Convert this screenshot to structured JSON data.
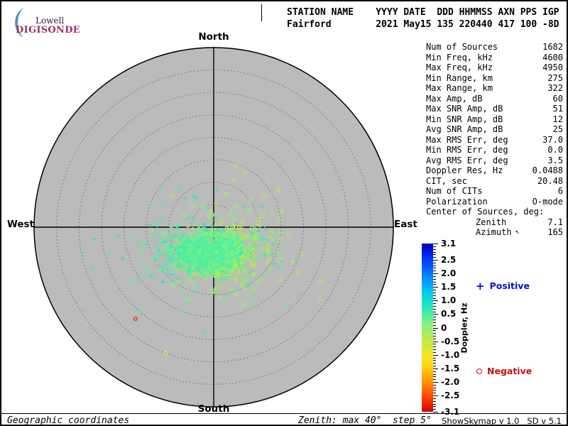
{
  "header": {
    "logo": {
      "line1": "Lowell",
      "line2": "DIGISONDE",
      "crescent_color": "#4a8fc0",
      "brand_color": "#9c3068",
      "text_color": "#22223a"
    },
    "columns_line": "STATION NAME    YYYY DATE  DDD HHMMSS AXN PPS IGP",
    "values_line": "Fairford        2021 May15 135 220440 417 100 -8D"
  },
  "compass": {
    "north": "North",
    "south": "South",
    "east": "East",
    "west": "West"
  },
  "stats": {
    "rows": [
      {
        "label": "Num of Sources",
        "value": "1682"
      },
      {
        "label": "Min Freq, kHz",
        "value": "4600"
      },
      {
        "label": "Max Freq, kHz",
        "value": "4950"
      },
      {
        "label": "Min Range, km",
        "value": "275"
      },
      {
        "label": "Max Range, km",
        "value": "322"
      },
      {
        "label": "Max Amp, dB",
        "value": "60"
      },
      {
        "label": "Max SNR Amp, dB",
        "value": "51"
      },
      {
        "label": "Min SNR Amp, dB",
        "value": "12"
      },
      {
        "label": "Avg SNR Amp, dB",
        "value": "25"
      },
      {
        "label": "Max RMS Err, deg",
        "value": "37.0"
      },
      {
        "label": "Min RMS Err, deg",
        "value": "0.0"
      },
      {
        "label": "Avg RMS Err, deg",
        "value": "3.5"
      },
      {
        "label": "Doppler Res, Hz",
        "value": "0.0488"
      },
      {
        "label": "CIT, sec",
        "value": "20.48"
      },
      {
        "label": "Num of CITs",
        "value": "6"
      },
      {
        "label": "Polarization",
        "value": "O-mode"
      },
      {
        "label": "Center of Sources, deg:",
        "value": ""
      },
      {
        "label": "Zenith",
        "value": "7.1",
        "indent": true
      },
      {
        "label": "Azimuth",
        "value": "165",
        "indent": true,
        "icon": "↖"
      }
    ]
  },
  "legend": {
    "positive_symbol": "+",
    "positive_label": "Positive",
    "positive_color": "#0011cc",
    "negative_label": "Negative",
    "negative_color": "#cc1111"
  },
  "colorbar": {
    "label": "Doppler, Hz",
    "max": 3.1,
    "min": -3.1,
    "ticks": [
      {
        "v": 3.1,
        "label": "3.1"
      },
      {
        "v": 2.5,
        "label": "2.5"
      },
      {
        "v": 2.0,
        "label": "2.0"
      },
      {
        "v": 1.5,
        "label": "1.5"
      },
      {
        "v": 1.0,
        "label": "1.0"
      },
      {
        "v": 0.5,
        "label": "0.5"
      },
      {
        "v": 0.0,
        "label": "0"
      },
      {
        "v": -0.5,
        "label": "-0.5"
      },
      {
        "v": -1.0,
        "label": "-1.0"
      },
      {
        "v": -1.5,
        "label": "-1.5"
      },
      {
        "v": -2.0,
        "label": "-2.0"
      },
      {
        "v": -2.5,
        "label": "-2.5"
      },
      {
        "v": -3.1,
        "label": "-3.1"
      }
    ],
    "stops": [
      {
        "v": 3.1,
        "c": "#0000bb"
      },
      {
        "v": 2.7,
        "c": "#0022ee"
      },
      {
        "v": 2.3,
        "c": "#0055ff"
      },
      {
        "v": 1.8,
        "c": "#0090ff"
      },
      {
        "v": 1.4,
        "c": "#00c0f0"
      },
      {
        "v": 1.0,
        "c": "#10dcd8"
      },
      {
        "v": 0.7,
        "c": "#30e8b8"
      },
      {
        "v": 0.4,
        "c": "#58f098"
      },
      {
        "v": 0.1,
        "c": "#84f480"
      },
      {
        "v": -0.2,
        "c": "#a8ec60"
      },
      {
        "v": -0.6,
        "c": "#cce840"
      },
      {
        "v": -1.0,
        "c": "#eee822"
      },
      {
        "v": -1.4,
        "c": "#ffd810"
      },
      {
        "v": -1.8,
        "c": "#ffaa00"
      },
      {
        "v": -2.2,
        "c": "#ff7700"
      },
      {
        "v": -2.6,
        "c": "#ff3c00"
      },
      {
        "v": -3.1,
        "c": "#cc0800"
      }
    ]
  },
  "footer": {
    "coords": "Geographic coordinates",
    "zenith_info": "Zenith: max 40°  step 5°",
    "version": "ShowSkymap v 1.0   SD v 5.1"
  },
  "chart_data": {
    "type": "scatter",
    "projection": "polar zenith-azimuth skymap",
    "zenith_max_deg": 40,
    "zenith_step_deg": 5,
    "num_sources": 1682,
    "center_of_sources": {
      "zenith_deg": 7.1,
      "azimuth_deg": 165
    },
    "plot_bg": "#bbbbbb",
    "ring_color": "#6e6e6e",
    "axis_color": "#000000",
    "positive_marker": "plus",
    "negative_marker": "circle",
    "seed": 20210515,
    "clusters": [
      {
        "name": "positive-dense",
        "marker": "plus",
        "n": 920,
        "center_east_deg": -1.6,
        "center_south_deg": 5.7,
        "sigma_east_deg": 4.2,
        "sigma_south_deg": 2.1,
        "doppler_mean_hz": 0.38,
        "doppler_sigma_hz": 0.13
      },
      {
        "name": "positive-sparse",
        "marker": "plus",
        "n": 200,
        "center_east_deg": -2.0,
        "center_south_deg": 5.0,
        "sigma_east_deg": 8.5,
        "sigma_south_deg": 4.8,
        "doppler_mean_hz": 0.5,
        "doppler_sigma_hz": 0.18
      },
      {
        "name": "negative-dense",
        "marker": "circle",
        "n": 420,
        "center_east_deg": 2.2,
        "center_south_deg": 5.8,
        "sigma_east_deg": 3.2,
        "sigma_south_deg": 2.6,
        "doppler_mean_hz": -0.27,
        "doppler_sigma_hz": 0.13
      },
      {
        "name": "negative-sparse",
        "marker": "circle",
        "n": 129,
        "center_east_deg": 5.5,
        "center_south_deg": 4.5,
        "sigma_east_deg": 7.5,
        "sigma_south_deg": 5.5,
        "doppler_mean_hz": -0.3,
        "doppler_sigma_hz": 0.2
      }
    ],
    "outliers": [
      {
        "east_deg": -17.4,
        "south_deg": 20.4,
        "marker": "circle",
        "doppler_hz": -2.9
      },
      {
        "east_deg": -10.7,
        "south_deg": 28.0,
        "marker": "circle",
        "doppler_hz": -1.1
      },
      {
        "east_deg": -16.6,
        "south_deg": 18.7,
        "marker": "plus",
        "doppler_hz": 0.5
      },
      {
        "east_deg": -29.1,
        "south_deg": 5.4,
        "marker": "plus",
        "doppler_hz": 0.5
      },
      {
        "east_deg": -27.2,
        "south_deg": 9.1,
        "marker": "plus",
        "doppler_hz": 0.55
      },
      {
        "east_deg": 23.9,
        "south_deg": 12.2,
        "marker": "circle",
        "doppler_hz": -0.3
      },
      {
        "east_deg": 16.4,
        "south_deg": 17.2,
        "marker": "plus",
        "doppler_hz": 0.45
      },
      {
        "east_deg": 4.9,
        "south_deg": -13.7,
        "marker": "circle",
        "doppler_hz": -0.3
      },
      {
        "east_deg": 7.0,
        "south_deg": -12.2,
        "marker": "circle",
        "doppler_hz": -0.25
      },
      {
        "east_deg": 4.6,
        "south_deg": -10.4,
        "marker": "circle",
        "doppler_hz": -0.35
      },
      {
        "east_deg": -11.7,
        "south_deg": -8.9,
        "marker": "plus",
        "doppler_hz": 0.5
      },
      {
        "east_deg": 0.6,
        "south_deg": -8.2,
        "marker": "plus",
        "doppler_hz": 0.55
      },
      {
        "east_deg": 15.2,
        "south_deg": -3.5,
        "marker": "circle",
        "doppler_hz": -0.3
      }
    ]
  }
}
